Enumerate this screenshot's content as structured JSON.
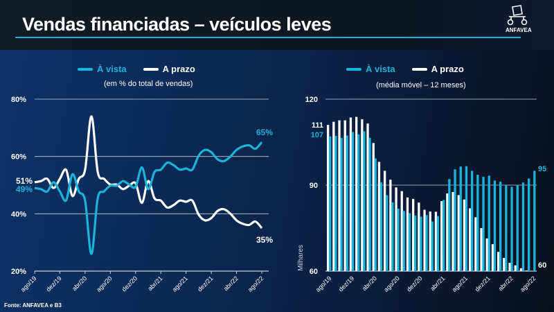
{
  "header": {
    "title": "Vendas financiadas – veículos leves",
    "logo_text": "ANFAVEA"
  },
  "colors": {
    "a_vista": "#1ab3da",
    "a_prazo": "#ffffff",
    "accent_rule": "#16b4dc"
  },
  "source": "Fonte: ANFAVEA e B3",
  "chart_data": [
    {
      "type": "line",
      "subtitle": "(em % do total de vendas)",
      "legend": [
        "À vista",
        "A prazo"
      ],
      "legend_placement": "top",
      "x": [
        "ago/19",
        "set/19",
        "out/19",
        "nov/19",
        "dez/19",
        "jan/20",
        "fev/20",
        "mar/20",
        "abr/20",
        "mai/20",
        "jun/20",
        "jul/20",
        "ago/20",
        "set/20",
        "out/20",
        "nov/20",
        "dez/20",
        "jan/21",
        "fev/21",
        "mar/21",
        "abr/21",
        "mai/21",
        "jun/21",
        "jul/21",
        "ago/21",
        "set/21",
        "out/21",
        "nov/21",
        "dez/21",
        "jan/22",
        "fev/22",
        "mar/22",
        "abr/22",
        "mai/22",
        "jun/22",
        "jul/22",
        "ago/22"
      ],
      "xticks": [
        "ago/19",
        "dez/19",
        "abr/20",
        "ago/20",
        "dez/20",
        "abr/21",
        "ago/21",
        "dez/21",
        "abr/22",
        "ago/22"
      ],
      "yticks": [
        "20%",
        "40%",
        "60%",
        "80%"
      ],
      "ylim": [
        20,
        80
      ],
      "grid": true,
      "series": [
        {
          "name": "À vista",
          "values": [
            49,
            48.6,
            47.8,
            51,
            47.8,
            44.7,
            53.8,
            47.8,
            44.6,
            26,
            45.4,
            47.8,
            49.8,
            49.8,
            51.4,
            50.2,
            49.4,
            56.2,
            48.6,
            54.6,
            55.4,
            57.8,
            57,
            55.4,
            55.8,
            55.4,
            60.3,
            62.3,
            61.5,
            59,
            58.4,
            59.9,
            62.3,
            63.5,
            63.9,
            62.7,
            65
          ]
        },
        {
          "name": "A prazo",
          "values": [
            51,
            51.4,
            52.2,
            49,
            52.2,
            55.3,
            46.2,
            52.2,
            55.4,
            74,
            54.6,
            52.2,
            50.2,
            50.2,
            48.6,
            49.8,
            50.6,
            43.8,
            51.4,
            45.4,
            44.6,
            42.2,
            43,
            44.6,
            44.2,
            44.6,
            39.7,
            37.7,
            38.5,
            41,
            41.6,
            40.1,
            37.7,
            36.5,
            36.1,
            37.3,
            35
          ]
        }
      ],
      "annotations": {
        "start_prazo": "51%",
        "start_vista": "49%",
        "end_vista": "65%",
        "end_prazo": "35%"
      }
    },
    {
      "type": "bar",
      "subtitle": "(média móvel – 12 meses)",
      "legend": [
        "À vista",
        "A prazo"
      ],
      "legend_placement": "top",
      "ylabel": "Milhares",
      "x": [
        "ago/19",
        "set/19",
        "out/19",
        "nov/19",
        "dez/19",
        "jan/20",
        "fev/20",
        "mar/20",
        "abr/20",
        "mai/20",
        "jun/20",
        "jul/20",
        "ago/20",
        "set/20",
        "out/20",
        "nov/20",
        "dez/20",
        "jan/21",
        "fev/21",
        "mar/21",
        "abr/21",
        "mai/21",
        "jun/21",
        "jul/21",
        "ago/21",
        "set/21",
        "out/21",
        "nov/21",
        "dez/21",
        "jan/22",
        "fev/22",
        "mar/22",
        "abr/22",
        "mai/22",
        "jun/22",
        "jul/22",
        "ago/22"
      ],
      "xticks": [
        "ago/19",
        "dez/19",
        "abr/20",
        "ago/20",
        "dez/20",
        "abr/21",
        "ago/21",
        "dez/21",
        "abr/22",
        "ago/22"
      ],
      "yticks": [
        "60",
        "90",
        "120"
      ],
      "ylim": [
        60,
        120
      ],
      "grid": true,
      "series": [
        {
          "name": "A prazo",
          "values": [
            111,
            112.1,
            112.6,
            112.6,
            113.6,
            113.8,
            113,
            111.5,
            104.7,
            98.1,
            95,
            91.9,
            89.2,
            87.9,
            85.7,
            85.2,
            83.9,
            81.4,
            80.8,
            80.7,
            84.4,
            87.1,
            87.6,
            86.5,
            85,
            81.9,
            78.8,
            75,
            71.4,
            69.4,
            66.7,
            64.6,
            62.9,
            62,
            61,
            60.2,
            60
          ]
        },
        {
          "name": "À vista",
          "values": [
            107,
            107.2,
            106.5,
            107.3,
            108.5,
            107.7,
            108.8,
            106.5,
            99.3,
            91,
            86.5,
            84,
            81.8,
            81,
            80.2,
            79.4,
            79,
            79.5,
            77.3,
            79.2,
            84.8,
            92.1,
            95.5,
            96.5,
            96.6,
            95,
            93.6,
            92.9,
            93.3,
            91.6,
            91.2,
            90,
            89.4,
            90.1,
            90.9,
            92.3,
            95
          ]
        }
      ],
      "annotations": {
        "start_prazo": "111",
        "start_vista": "107",
        "end_vista": "95",
        "end_prazo": "60"
      }
    }
  ]
}
